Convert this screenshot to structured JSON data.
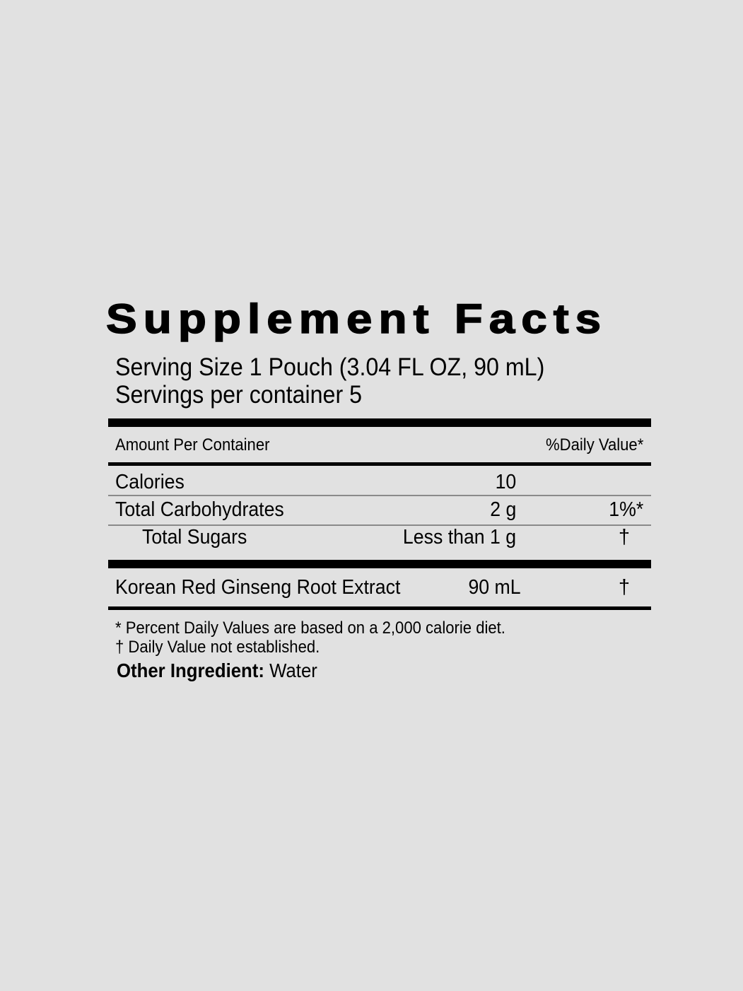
{
  "title": "Supplement Facts",
  "serving_size": "Serving Size 1 Pouch (3.04 FL OZ, 90 mL)",
  "servings_per_container": "Servings per container 5",
  "header": {
    "amount": "Amount Per Container",
    "daily_value": "%Daily Value*"
  },
  "rows": [
    {
      "label": "Calories",
      "amount": "10",
      "dv": ""
    },
    {
      "label": "Total Carbohydrates",
      "amount": "2 g",
      "dv": "1%*"
    },
    {
      "label": "Total Sugars",
      "amount": "Less than 1 g",
      "dv": "†"
    },
    {
      "label": "Korean Red Ginseng Root Extract",
      "amount": "90 mL",
      "dv": "†"
    }
  ],
  "footnotes": {
    "percent": "* Percent Daily Values are based on a 2,000 calorie diet.",
    "dagger": "† Daily Value not established.",
    "other_label": "Other Ingredient:",
    "other_value": " Water"
  }
}
